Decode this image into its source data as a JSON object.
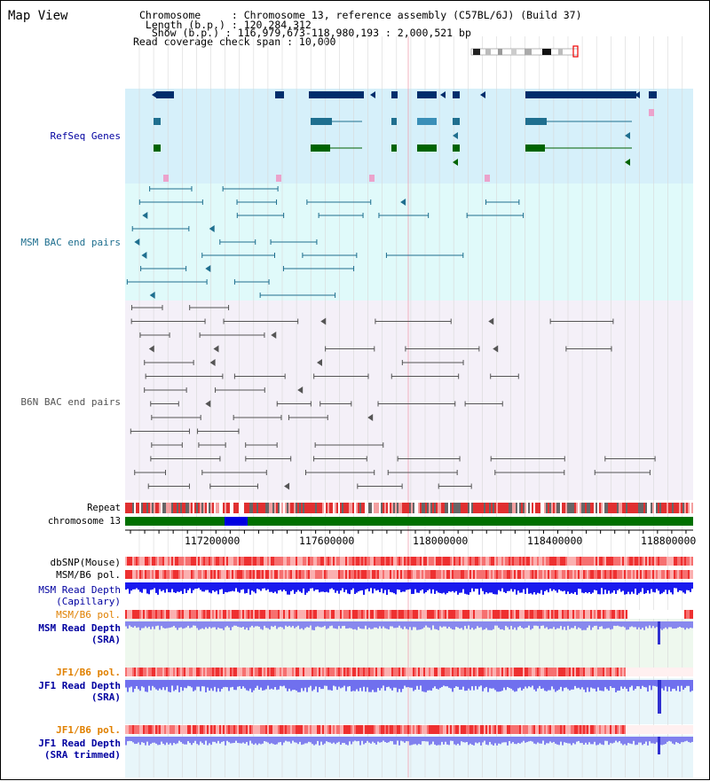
{
  "header": {
    "title": "Map View",
    "info_lines": [
      "Chromosome     : Chromosome 13, reference assembly (C57BL/6J) (Build 37)",
      " Length (b.p.) : 120,284,312",
      "  Show (b.p.) : 116,979,673-118,980,193 : 2,000,521 bp",
      "Read coverage check span : 10,000"
    ]
  },
  "tracks": {
    "refseq": "RefSeq Genes",
    "msm_bac": "MSM BAC end pairs",
    "b6n_bac": "B6N BAC end pairs",
    "repeat": "Repeat",
    "chromosome": "chromosome 13",
    "dbsnp": "dbSNP(Mouse)",
    "msm_pol_1": "MSM/B6 pol.",
    "msm_depth_cap_1": "MSM Read Depth",
    "msm_depth_cap_2": "(Capillary)",
    "msm_pol_2": "MSM/B6 pol.",
    "msm_depth_sra_1": "MSM Read Depth",
    "msm_depth_sra_2": "(SRA)",
    "jf1_pol_1": "JF1/B6 pol.",
    "jf1_depth_sra_1": "JF1 Read Depth",
    "jf1_depth_sra_2": "(SRA)",
    "jf1_pol_2": "JF1/B6 pol.",
    "jf1_depth_trim_1": "JF1 Read Depth",
    "jf1_depth_trim_2": "(SRA trimmed)"
  },
  "axis": {
    "ticks": [
      "117200000",
      "117600000",
      "118000000",
      "118400000",
      "118800000"
    ]
  },
  "colors": {
    "refseq_bg": "#d6f0fa",
    "msm_bg": "#e0fafa",
    "b6n_bg": "#f4f0f8",
    "navy": "#002d6b",
    "teal": "#1f6f8f",
    "gray": "#555555",
    "blue_label": "#0000a0",
    "orange_label": "#e08000"
  }
}
